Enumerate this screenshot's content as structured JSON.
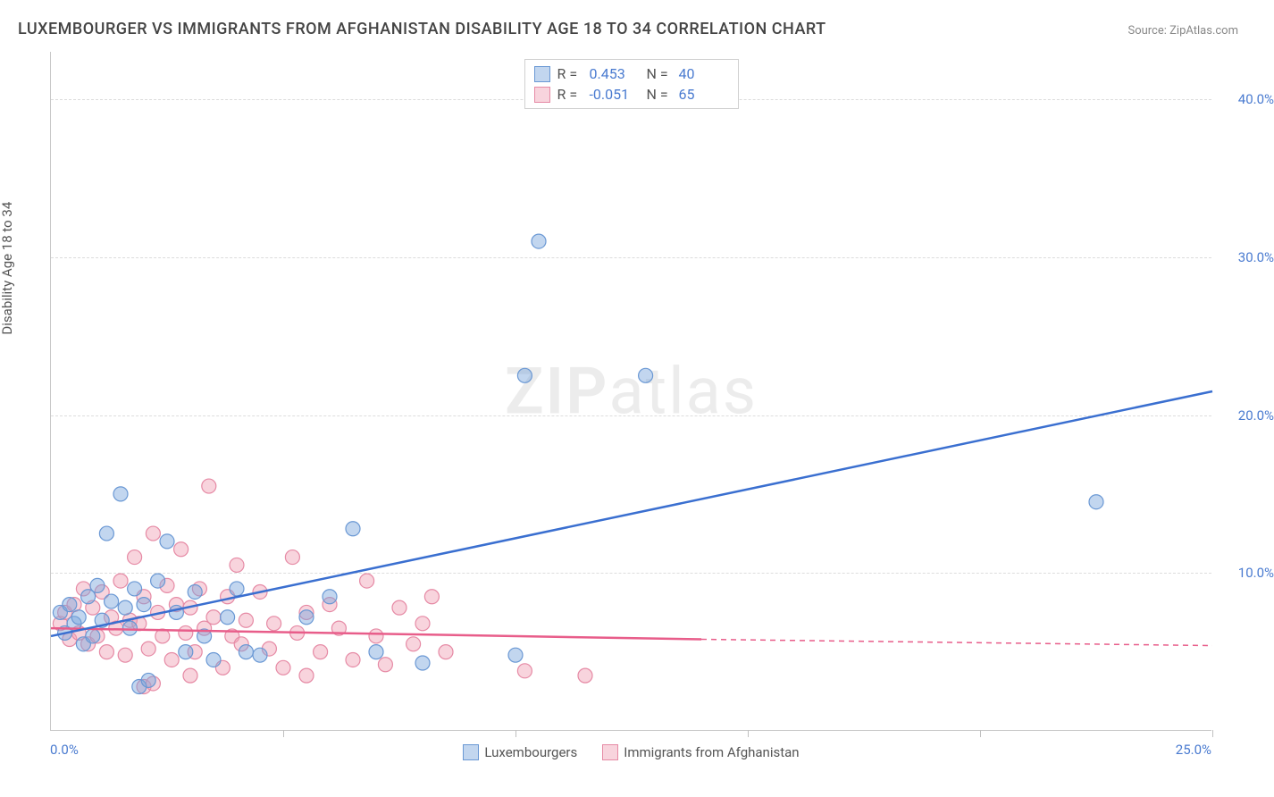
{
  "title": "LUXEMBOURGER VS IMMIGRANTS FROM AFGHANISTAN DISABILITY AGE 18 TO 34 CORRELATION CHART",
  "source": "Source: ZipAtlas.com",
  "y_axis_title": "Disability Age 18 to 34",
  "watermark_zip": "ZIP",
  "watermark_atlas": "atlas",
  "chart": {
    "type": "scatter",
    "xlim": [
      0,
      25
    ],
    "ylim": [
      0,
      43
    ],
    "x_tick_labels": [
      "0.0%",
      "25.0%"
    ],
    "x_minor_ticks": [
      5,
      10,
      15,
      20,
      25
    ],
    "y_ticks": [
      10,
      20,
      30,
      40
    ],
    "y_tick_labels": [
      "10.0%",
      "20.0%",
      "30.0%",
      "40.0%"
    ],
    "background_color": "#ffffff",
    "grid_color": "#dcdcdc",
    "axis_color": "#c8c8c8",
    "tick_label_color": "#4a7bd0",
    "marker_radius": 8,
    "marker_stroke_width": 1.2,
    "series": [
      {
        "id": "lux",
        "label": "Luxembourgers",
        "fill": "rgba(120,165,220,0.45)",
        "stroke": "#6a98d4",
        "r": 0.453,
        "n": 40,
        "line": {
          "x1": 0,
          "y1": 6.0,
          "x2": 25,
          "y2": 21.5,
          "color": "#3a6fd0",
          "width": 2.5,
          "dash": ""
        },
        "points": [
          [
            0.2,
            7.5
          ],
          [
            0.3,
            6.2
          ],
          [
            0.4,
            8.0
          ],
          [
            0.5,
            6.8
          ],
          [
            0.6,
            7.2
          ],
          [
            0.7,
            5.5
          ],
          [
            0.8,
            8.5
          ],
          [
            0.9,
            6.0
          ],
          [
            1.0,
            9.2
          ],
          [
            1.1,
            7.0
          ],
          [
            1.2,
            12.5
          ],
          [
            1.3,
            8.2
          ],
          [
            1.5,
            15.0
          ],
          [
            1.6,
            7.8
          ],
          [
            1.7,
            6.5
          ],
          [
            1.8,
            9.0
          ],
          [
            1.9,
            2.8
          ],
          [
            2.0,
            8.0
          ],
          [
            2.1,
            3.2
          ],
          [
            2.3,
            9.5
          ],
          [
            2.5,
            12.0
          ],
          [
            2.7,
            7.5
          ],
          [
            2.9,
            5.0
          ],
          [
            3.1,
            8.8
          ],
          [
            3.3,
            6.0
          ],
          [
            3.5,
            4.5
          ],
          [
            3.8,
            7.2
          ],
          [
            4.0,
            9.0
          ],
          [
            4.2,
            5.0
          ],
          [
            4.5,
            4.8
          ],
          [
            5.5,
            7.2
          ],
          [
            6.0,
            8.5
          ],
          [
            6.5,
            12.8
          ],
          [
            7.0,
            5.0
          ],
          [
            8.0,
            4.3
          ],
          [
            10.0,
            4.8
          ],
          [
            10.2,
            22.5
          ],
          [
            12.8,
            22.5
          ],
          [
            10.5,
            31.0
          ],
          [
            22.5,
            14.5
          ]
        ]
      },
      {
        "id": "afg",
        "label": "Immigrants from Afghanistan",
        "fill": "rgba(240,160,180,0.45)",
        "stroke": "#e68aa5",
        "r": -0.051,
        "n": 65,
        "line": {
          "x1": 0,
          "y1": 6.5,
          "x2": 14.0,
          "y2": 5.8,
          "color": "#e85d8a",
          "width": 2.5,
          "dash": "",
          "ext_x2": 25,
          "ext_y2": 5.4,
          "ext_dash": "6 5"
        },
        "points": [
          [
            0.2,
            6.8
          ],
          [
            0.3,
            7.5
          ],
          [
            0.4,
            5.8
          ],
          [
            0.5,
            8.0
          ],
          [
            0.6,
            6.2
          ],
          [
            0.7,
            9.0
          ],
          [
            0.8,
            5.5
          ],
          [
            0.9,
            7.8
          ],
          [
            1.0,
            6.0
          ],
          [
            1.1,
            8.8
          ],
          [
            1.2,
            5.0
          ],
          [
            1.3,
            7.2
          ],
          [
            1.4,
            6.5
          ],
          [
            1.5,
            9.5
          ],
          [
            1.6,
            4.8
          ],
          [
            1.7,
            7.0
          ],
          [
            1.8,
            11.0
          ],
          [
            1.9,
            6.8
          ],
          [
            2.0,
            8.5
          ],
          [
            2.1,
            5.2
          ],
          [
            2.2,
            12.5
          ],
          [
            2.3,
            7.5
          ],
          [
            2.4,
            6.0
          ],
          [
            2.5,
            9.2
          ],
          [
            2.6,
            4.5
          ],
          [
            2.7,
            8.0
          ],
          [
            2.8,
            11.5
          ],
          [
            2.9,
            6.2
          ],
          [
            3.0,
            7.8
          ],
          [
            3.1,
            5.0
          ],
          [
            3.2,
            9.0
          ],
          [
            3.3,
            6.5
          ],
          [
            3.4,
            15.5
          ],
          [
            3.5,
            7.2
          ],
          [
            3.7,
            4.0
          ],
          [
            3.8,
            8.5
          ],
          [
            3.9,
            6.0
          ],
          [
            4.0,
            10.5
          ],
          [
            4.1,
            5.5
          ],
          [
            4.2,
            7.0
          ],
          [
            4.5,
            8.8
          ],
          [
            4.7,
            5.2
          ],
          [
            4.8,
            6.8
          ],
          [
            5.0,
            4.0
          ],
          [
            5.2,
            11.0
          ],
          [
            5.3,
            6.2
          ],
          [
            5.5,
            7.5
          ],
          [
            5.8,
            5.0
          ],
          [
            6.0,
            8.0
          ],
          [
            6.2,
            6.5
          ],
          [
            6.5,
            4.5
          ],
          [
            6.8,
            9.5
          ],
          [
            7.0,
            6.0
          ],
          [
            7.2,
            4.2
          ],
          [
            7.5,
            7.8
          ],
          [
            7.8,
            5.5
          ],
          [
            8.0,
            6.8
          ],
          [
            8.2,
            8.5
          ],
          [
            8.5,
            5.0
          ],
          [
            10.2,
            3.8
          ],
          [
            11.5,
            3.5
          ],
          [
            2.0,
            2.8
          ],
          [
            2.2,
            3.0
          ],
          [
            3.0,
            3.5
          ],
          [
            5.5,
            3.5
          ]
        ]
      }
    ]
  },
  "legend_top": {
    "r_label": "R =",
    "n_label": "N ="
  }
}
